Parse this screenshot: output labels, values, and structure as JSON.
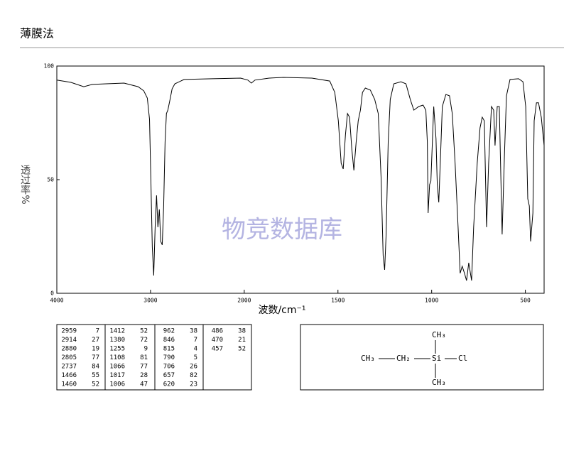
{
  "header": {
    "title": "薄膜法"
  },
  "watermark": "物竞数据库",
  "chart_data": {
    "type": "line",
    "xlabel": "波数/cm⁻¹",
    "ylabel": "透过率%",
    "color": "#000000",
    "xlim": [
      4000,
      400
    ],
    "x_scale_break": 2000,
    "xticks": [
      4000,
      3000,
      2000,
      1500,
      1000,
      500
    ],
    "ylim": [
      0,
      100
    ],
    "yticks": [
      0,
      50,
      100
    ],
    "x": [
      4000,
      3849,
      3713,
      3623,
      3472,
      3283,
      3132,
      3072,
      3034,
      3011,
      2996,
      2981,
      2966,
      2951,
      2936,
      2921,
      2906,
      2891,
      2875,
      2860,
      2845,
      2830,
      2815,
      2792,
      2770,
      2740,
      2642,
      2340,
      2038,
      1981,
      1962,
      1943,
      1867,
      1791,
      1639,
      1544,
      1517,
      1498,
      1483,
      1472,
      1460,
      1449,
      1438,
      1426,
      1415,
      1403,
      1392,
      1380,
      1369,
      1354,
      1327,
      1304,
      1285,
      1270,
      1259,
      1251,
      1243,
      1232,
      1221,
      1202,
      1164,
      1137,
      1114,
      1095,
      1069,
      1046,
      1031,
      1023,
      1019,
      1011,
      1004,
      996,
      989,
      977,
      970,
      962,
      954,
      943,
      924,
      905,
      890,
      875,
      859,
      848,
      837,
      825,
      814,
      802,
      787,
      776,
      757,
      742,
      730,
      719,
      707,
      696,
      681,
      669,
      662,
      650,
      639,
      624,
      612,
      601,
      582,
      536,
      513,
      498,
      487,
      479,
      472,
      460,
      453,
      441,
      430,
      415,
      400
    ],
    "values": [
      93.8,
      92.8,
      90.9,
      91.9,
      92.2,
      92.5,
      90.9,
      89.1,
      85.9,
      76.6,
      48.4,
      20.3,
      7.8,
      29.1,
      43.1,
      29.1,
      36.9,
      22.8,
      21.3,
      38.4,
      66.6,
      79.1,
      80.6,
      85.3,
      90.0,
      92.2,
      94.1,
      94.4,
      94.7,
      93.8,
      92.5,
      93.8,
      94.7,
      95.0,
      94.7,
      93.4,
      88.4,
      75.9,
      57.2,
      54.7,
      69.7,
      79.1,
      77.5,
      63.4,
      54.1,
      66.6,
      75.9,
      80.6,
      88.4,
      90.3,
      89.4,
      85.3,
      79.1,
      50.9,
      16.6,
      10.3,
      25.9,
      66.6,
      85.3,
      92.2,
      93.1,
      92.2,
      85.3,
      80.6,
      82.2,
      82.8,
      80.6,
      66.6,
      35.3,
      47.8,
      49.4,
      66.6,
      82.2,
      68.1,
      47.8,
      40.0,
      57.2,
      82.2,
      87.5,
      86.9,
      79.1,
      57.2,
      29.1,
      8.8,
      11.9,
      8.8,
      5.6,
      13.4,
      5.6,
      29.1,
      57.2,
      72.8,
      77.5,
      75.9,
      29.1,
      57.2,
      82.2,
      80.6,
      65.0,
      82.2,
      82.2,
      25.9,
      60.3,
      86.9,
      94.1,
      94.4,
      93.1,
      82.2,
      41.6,
      38.4,
      22.8,
      35.3,
      75.9,
      83.8,
      83.8,
      77.5,
      65.0
    ]
  },
  "peak_table": {
    "columns": [
      [
        [
          2959,
          7
        ],
        [
          2914,
          27
        ],
        [
          2880,
          19
        ],
        [
          2805,
          77
        ],
        [
          2737,
          84
        ],
        [
          1466,
          55
        ],
        [
          1460,
          52
        ]
      ],
      [
        [
          1412,
          52
        ],
        [
          1380,
          72
        ],
        [
          1255,
          9
        ],
        [
          1108,
          81
        ],
        [
          1066,
          77
        ],
        [
          1017,
          28
        ],
        [
          1006,
          47
        ]
      ],
      [
        [
          962,
          38
        ],
        [
          846,
          7
        ],
        [
          815,
          4
        ],
        [
          790,
          5
        ],
        [
          706,
          26
        ],
        [
          657,
          82
        ],
        [
          620,
          23
        ]
      ],
      [
        [
          486,
          38
        ],
        [
          470,
          21
        ],
        [
          457,
          52
        ]
      ]
    ]
  },
  "structure": {
    "left": "CH₃",
    "middle": "CH₂",
    "center": "Si",
    "right": "Cl",
    "top": "CH₃",
    "bottom": "CH₃"
  }
}
